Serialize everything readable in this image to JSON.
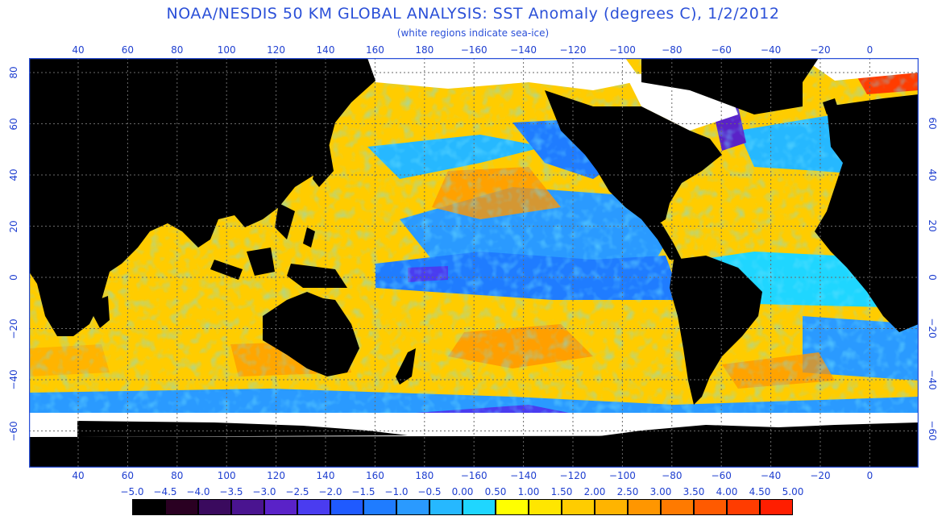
{
  "header": {
    "title": "NOAA/NESDIS 50 KM GLOBAL ANALYSIS: SST Anomaly (degrees C), 1/2/2012",
    "subtitle": "(white regions indicate sea-ice)"
  },
  "axes": {
    "lon_labels": [
      "40",
      "60",
      "80",
      "100",
      "120",
      "140",
      "160",
      "180",
      "−160",
      "−140",
      "−120",
      "−100",
      "−80",
      "−60",
      "−40",
      "−20",
      "0"
    ],
    "lat_left_labels": [
      "80",
      "60",
      "40",
      "20",
      "0",
      "−20",
      "−40",
      "−60"
    ],
    "lat_right_labels": [
      "60",
      "40",
      "20",
      "0",
      "−20",
      "−40",
      "−60"
    ]
  },
  "legend": {
    "labels": [
      "−5.0",
      "−4.5",
      "−4.0",
      "−3.5",
      "−3.0",
      "−2.5",
      "−2.0",
      "−1.5",
      "−1.0",
      "−0.5",
      "0.00",
      "0.50",
      "1.00",
      "1.50",
      "2.00",
      "2.50",
      "3.00",
      "3.50",
      "4.00",
      "4.50",
      "5.00"
    ],
    "colors": [
      "#000000",
      "#2a0022",
      "#3a0a5e",
      "#4a1490",
      "#5a22c8",
      "#4a3cf0",
      "#1f5aff",
      "#1f7cff",
      "#2a9aff",
      "#26b8ff",
      "#1fd6ff",
      "#ffff00",
      "#ffe600",
      "#ffcc00",
      "#ffb400",
      "#ff9600",
      "#ff7a00",
      "#ff5a00",
      "#ff3c00",
      "#ff1e00"
    ]
  },
  "colors": {
    "land": "#000000",
    "ice": "#ffffff",
    "grid": "#6a6a6a",
    "label": "#1f3fd0"
  }
}
